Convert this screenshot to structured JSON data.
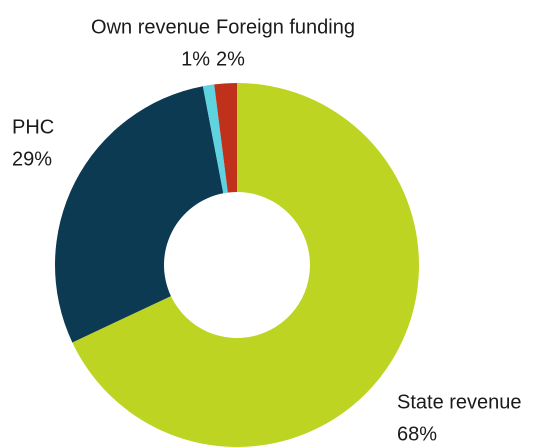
{
  "chart_data": {
    "type": "donut",
    "categories": [
      "State revenue",
      "PHC",
      "Own revenue",
      "Foreign funding"
    ],
    "values": [
      68,
      29,
      1,
      2
    ],
    "value_labels": [
      "68%",
      "29%",
      "1%",
      "2%"
    ],
    "colors": [
      "#bed422",
      "#0b3a52",
      "#5fd3df",
      "#c0311c"
    ]
  }
}
